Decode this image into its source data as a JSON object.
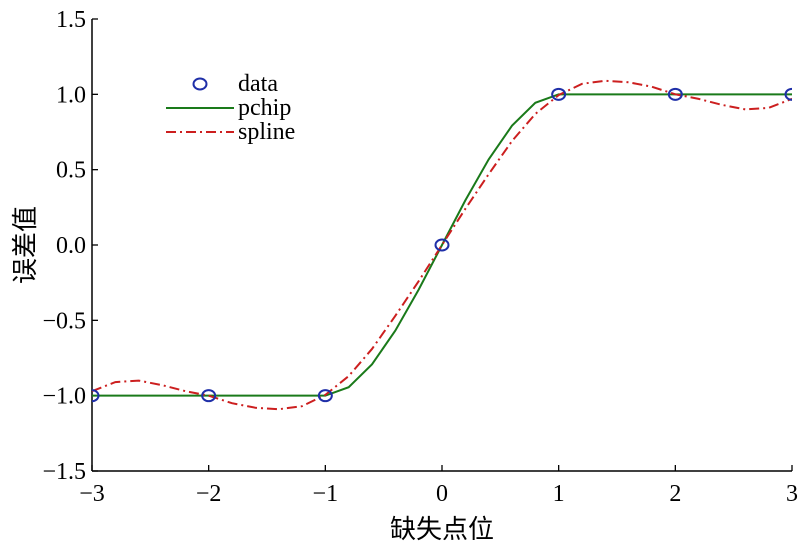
{
  "chart_data": {
    "type": "line",
    "title": "",
    "xlabel": "缺失点位",
    "ylabel": "误差值",
    "xlim": [
      -3,
      3
    ],
    "ylim": [
      -1.5,
      1.5
    ],
    "xticks": [
      -3,
      -2,
      -1,
      0,
      1,
      2,
      3
    ],
    "xtick_labels": [
      "−3",
      "−2",
      "−1",
      "0",
      "1",
      "2",
      "3"
    ],
    "yticks": [
      -1.5,
      -1.0,
      -0.5,
      0.0,
      0.5,
      1.0,
      1.5
    ],
    "ytick_labels": [
      "−1.5",
      "−1.0",
      "−0.5",
      "0.0",
      "0.5",
      "1.0",
      "1.5"
    ],
    "grid": false,
    "legend_position": "top-left",
    "series": [
      {
        "name": "data",
        "style": "markers",
        "marker": "circle",
        "color": "#1f2fa8",
        "x": [
          -3,
          -2,
          -1,
          0,
          1,
          2,
          3
        ],
        "y": [
          -1,
          -1,
          -1,
          0,
          1,
          1,
          1
        ]
      },
      {
        "name": "pchip",
        "style": "solid",
        "color": "#1a7a1a",
        "x": [
          -3,
          -2,
          -1,
          -0.8,
          -0.6,
          -0.4,
          -0.2,
          0,
          0.2,
          0.4,
          0.6,
          0.8,
          1,
          2,
          3
        ],
        "y": [
          -1,
          -1,
          -1,
          -0.944,
          -0.792,
          -0.568,
          -0.296,
          0,
          0.296,
          0.568,
          0.792,
          0.944,
          1,
          1,
          1
        ]
      },
      {
        "name": "spline",
        "style": "dash-dot",
        "color": "#cc1f1f",
        "x": [
          -3,
          -2.8,
          -2.6,
          -2.4,
          -2.2,
          -2,
          -1.8,
          -1.6,
          -1.4,
          -1.2,
          -1,
          -0.8,
          -0.6,
          -0.4,
          -0.2,
          0,
          0.2,
          0.4,
          0.6,
          0.8,
          1,
          1.2,
          1.4,
          1.6,
          1.8,
          2,
          2.2,
          2.4,
          2.6,
          2.8,
          3
        ],
        "y": [
          -0.97,
          -0.91,
          -0.9,
          -0.93,
          -0.97,
          -1.0,
          -1.05,
          -1.08,
          -1.09,
          -1.07,
          -0.995,
          -0.87,
          -0.69,
          -0.47,
          -0.24,
          0,
          0.24,
          0.47,
          0.69,
          0.87,
          0.995,
          1.07,
          1.09,
          1.08,
          1.05,
          1.0,
          0.97,
          0.93,
          0.9,
          0.91,
          0.97
        ]
      }
    ]
  }
}
